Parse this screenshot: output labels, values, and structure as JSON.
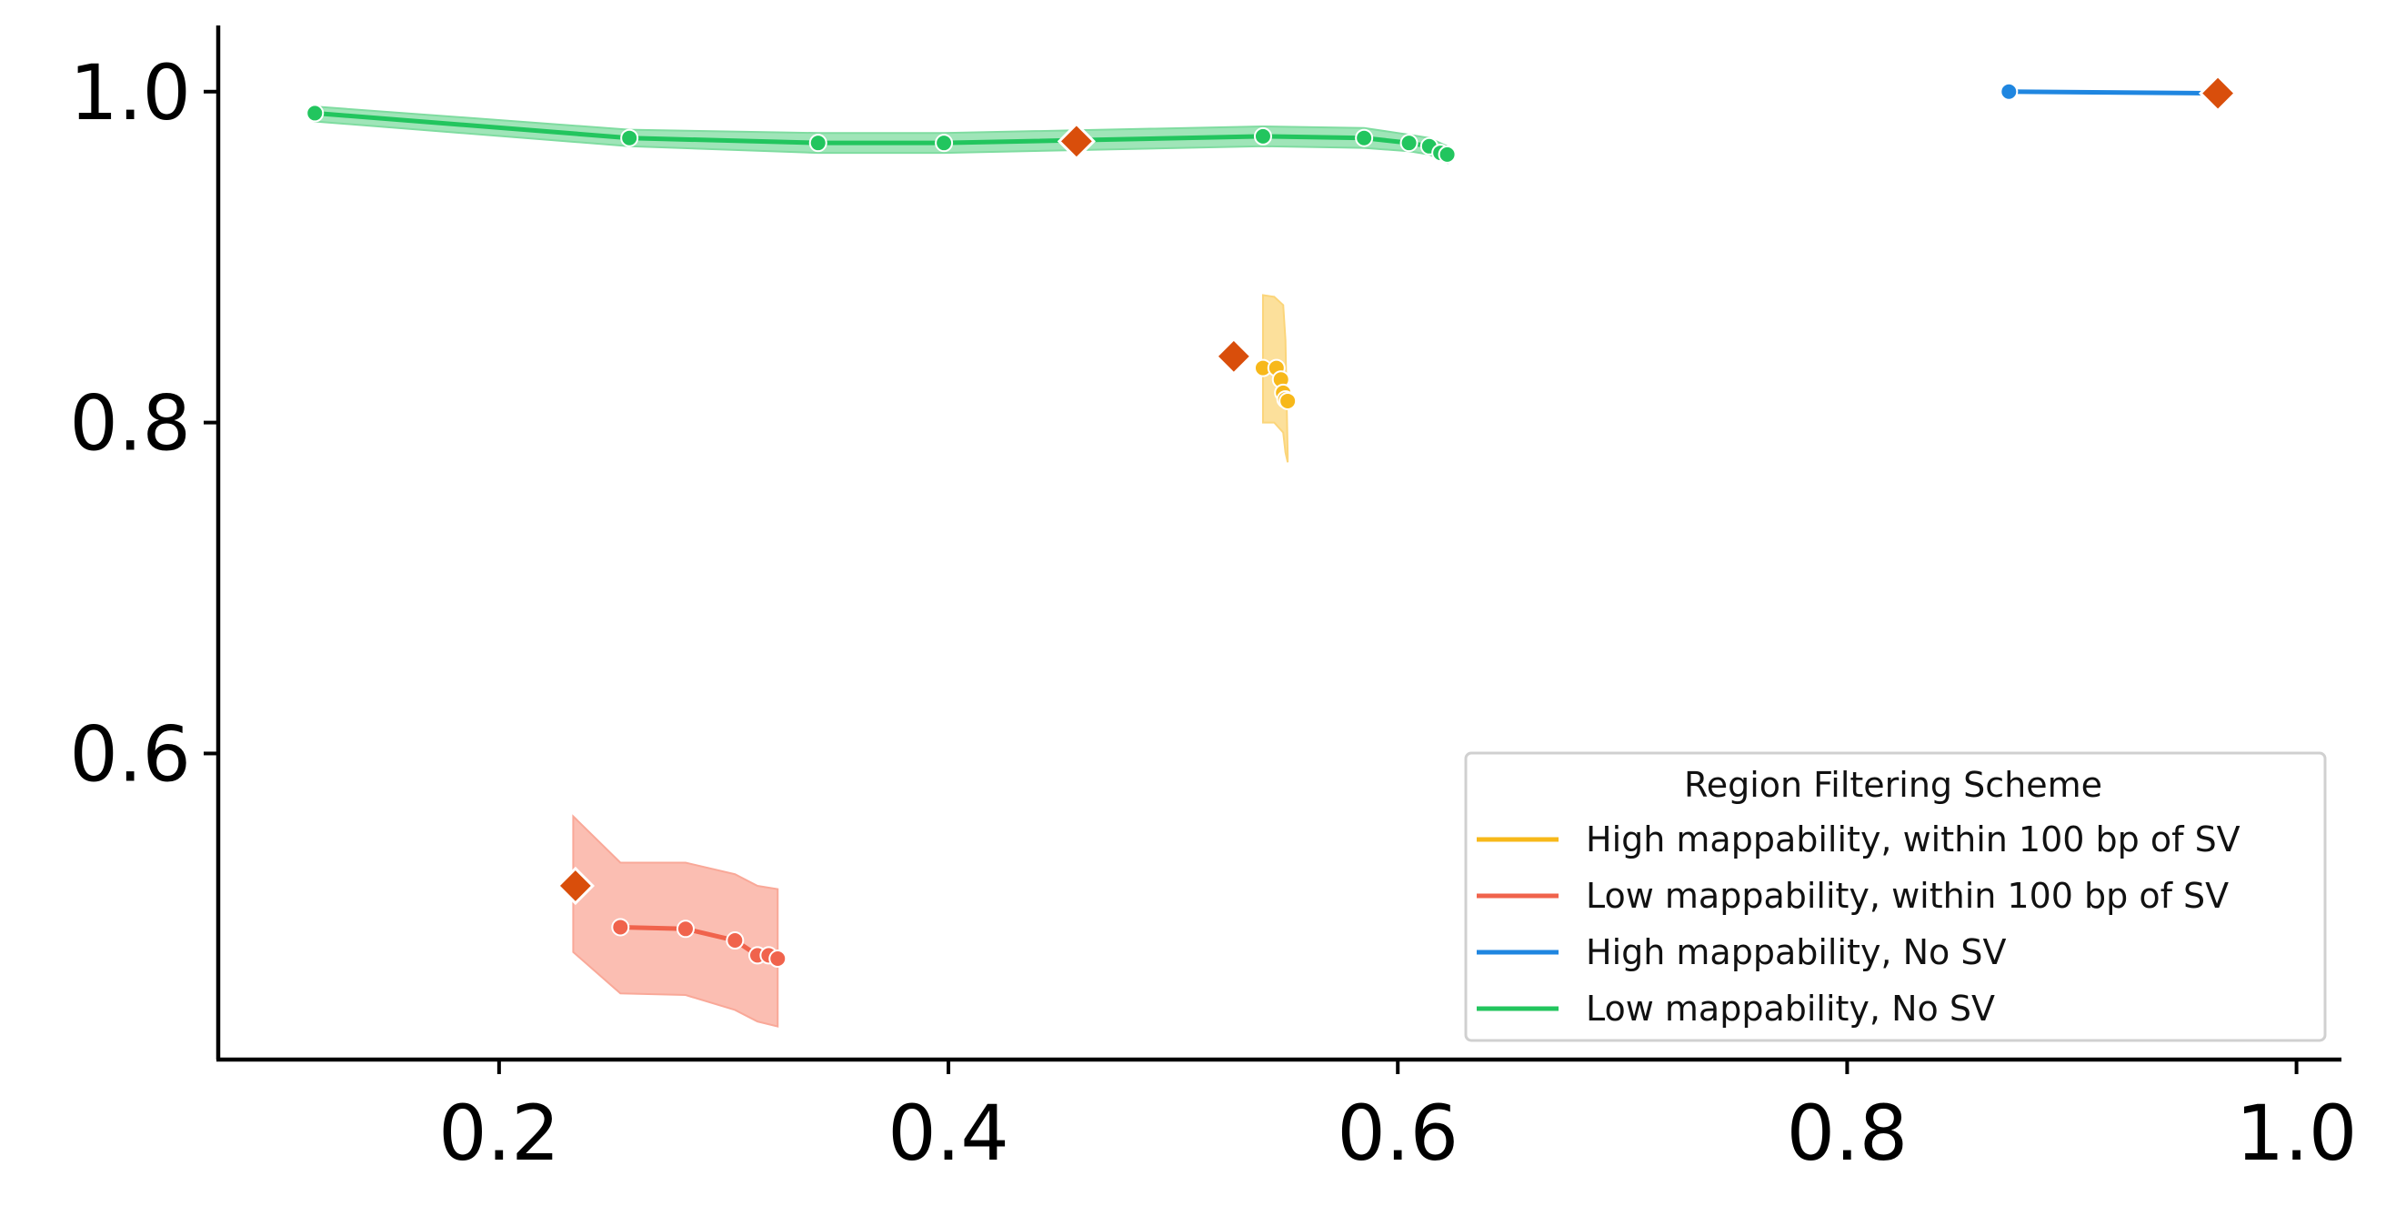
{
  "chart_data": {
    "type": "line",
    "xlim": [
      0.075,
      1.02
    ],
    "ylim": [
      0.415,
      1.04
    ],
    "x_ticks": [
      0.2,
      0.4,
      0.6,
      0.8,
      1.0
    ],
    "x_tick_labels": [
      "0.2",
      "0.4",
      "0.6",
      "0.8",
      "1.0"
    ],
    "y_ticks": [
      0.6,
      0.8,
      1.0
    ],
    "y_tick_labels": [
      "0.6",
      "0.8",
      "1.0"
    ],
    "grid": false,
    "legend": {
      "title": "Region Filtering Scheme",
      "placement": "lower-right"
    },
    "marker_color": "#d94e0b",
    "series": [
      {
        "name": "High mappability, within 100 bp of SV",
        "color": "#f7b81a",
        "band_color": "#fbd57a",
        "points": [
          [
            0.54,
            0.833
          ],
          [
            0.546,
            0.833
          ],
          [
            0.548,
            0.826
          ],
          [
            0.549,
            0.818
          ],
          [
            0.55,
            0.814
          ],
          [
            0.551,
            0.813
          ]
        ],
        "band_upper": [
          [
            0.54,
            0.877
          ],
          [
            0.545,
            0.876
          ],
          [
            0.549,
            0.871
          ],
          [
            0.55,
            0.85
          ],
          [
            0.551,
            0.78
          ]
        ],
        "band_lower": [
          [
            0.54,
            0.8
          ],
          [
            0.545,
            0.8
          ],
          [
            0.549,
            0.794
          ],
          [
            0.55,
            0.782
          ],
          [
            0.551,
            0.776
          ]
        ],
        "highlight": [
          0.527,
          0.84
        ]
      },
      {
        "name": "Low mappability, within 100 bp of SV",
        "color": "#f0634c",
        "band_color": "#f9a898",
        "points": [
          [
            0.254,
            0.495
          ],
          [
            0.283,
            0.494
          ],
          [
            0.305,
            0.487
          ],
          [
            0.315,
            0.478
          ],
          [
            0.32,
            0.478
          ],
          [
            0.324,
            0.476
          ]
        ],
        "band_upper": [
          [
            0.233,
            0.562
          ],
          [
            0.254,
            0.534
          ],
          [
            0.283,
            0.534
          ],
          [
            0.305,
            0.527
          ],
          [
            0.315,
            0.52
          ],
          [
            0.324,
            0.518
          ]
        ],
        "band_lower": [
          [
            0.233,
            0.48
          ],
          [
            0.254,
            0.455
          ],
          [
            0.283,
            0.454
          ],
          [
            0.305,
            0.445
          ],
          [
            0.315,
            0.438
          ],
          [
            0.324,
            0.435
          ]
        ],
        "highlight": [
          0.234,
          0.52
        ]
      },
      {
        "name": "High mappability, No SV",
        "color": "#1f86e0",
        "band_color": "#8ec3f0",
        "points": [
          [
            0.872,
            1.0
          ],
          [
            0.965,
            0.999
          ]
        ],
        "band_upper": [],
        "band_lower": [],
        "highlight": [
          0.965,
          0.999
        ]
      },
      {
        "name": "Low mappability, No SV",
        "color": "#22c55e",
        "band_color": "#7fdca0",
        "points": [
          [
            0.118,
            0.987
          ],
          [
            0.258,
            0.972
          ],
          [
            0.342,
            0.969
          ],
          [
            0.398,
            0.969
          ],
          [
            0.54,
            0.973
          ],
          [
            0.585,
            0.972
          ],
          [
            0.605,
            0.969
          ],
          [
            0.614,
            0.967
          ],
          [
            0.619,
            0.963
          ],
          [
            0.622,
            0.962
          ]
        ],
        "band_upper": [
          [
            0.118,
            0.991
          ],
          [
            0.258,
            0.977
          ],
          [
            0.342,
            0.975
          ],
          [
            0.398,
            0.975
          ],
          [
            0.54,
            0.979
          ],
          [
            0.585,
            0.978
          ],
          [
            0.605,
            0.974
          ],
          [
            0.614,
            0.972
          ],
          [
            0.622,
            0.967
          ]
        ],
        "band_lower": [
          [
            0.118,
            0.982
          ],
          [
            0.258,
            0.967
          ],
          [
            0.342,
            0.963
          ],
          [
            0.398,
            0.963
          ],
          [
            0.54,
            0.967
          ],
          [
            0.585,
            0.966
          ],
          [
            0.605,
            0.964
          ],
          [
            0.614,
            0.962
          ],
          [
            0.622,
            0.957
          ]
        ],
        "highlight": [
          0.457,
          0.97
        ]
      }
    ]
  }
}
